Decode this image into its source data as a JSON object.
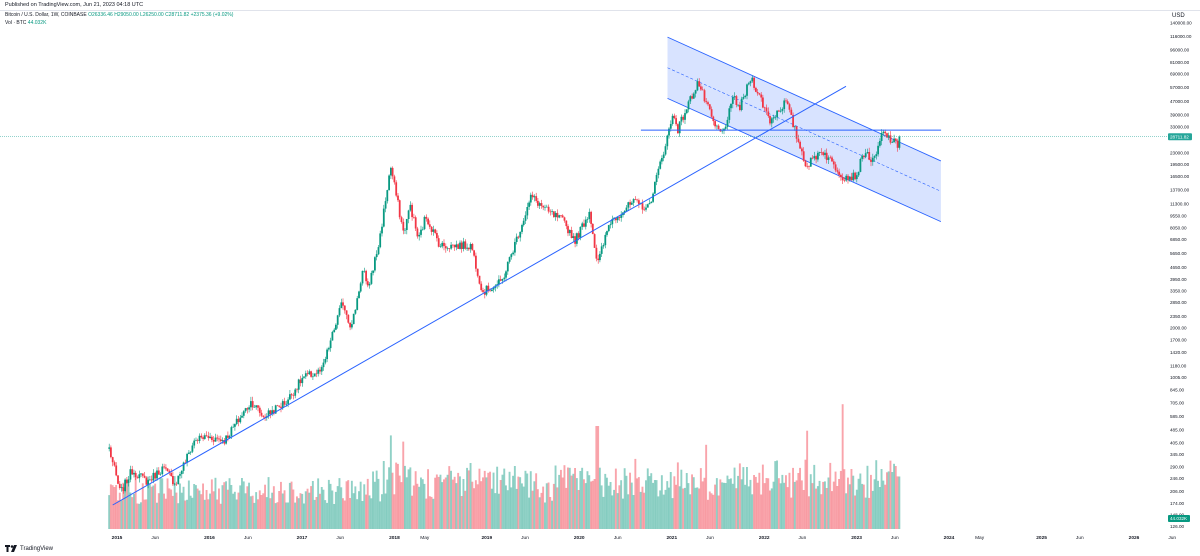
{
  "header": {
    "published": "Published on TradingView.com, Jun 21, 2023 04:18 UTC",
    "legend_symbol": "Bitcoin / U.S. Dollar, 1W, COINBASE",
    "legend_ohlc": "O26336.46  H29050.00  L26250.00  C28711.82  +2375.36 (+9.02%)",
    "legend_volume_label": "Vol · BTC",
    "legend_volume_value": "44.032K",
    "currency": "USD"
  },
  "footer": {
    "brand": "TradingView"
  },
  "colors": {
    "up": "#089981",
    "down": "#f23645",
    "line": "#2962ff",
    "channel_fill": "#2962ff",
    "last_price": "#26a69a"
  },
  "chart_data": {
    "type": "candlestick",
    "scale": "log",
    "y_ticks": [
      126.0,
      148.0,
      174.0,
      206.0,
      246.0,
      290.0,
      345.0,
      405.0,
      485.0,
      585.0,
      705.0,
      845.0,
      1005.0,
      1180.0,
      1420.0,
      1700.0,
      2000.0,
      2350.0,
      2850.0,
      3350.0,
      3950.0,
      4650.0,
      5650.0,
      6850.0,
      8050.0,
      9550.0,
      11300.0,
      13700.0,
      16500.0,
      19500.0,
      23000.0,
      33000.0,
      39000.0,
      47000.0,
      57000.0,
      69000.0,
      81000.0,
      96000.0,
      116000.0,
      140000.0
    ],
    "y_labels": [
      "126.00",
      "148.00",
      "174.00",
      "206.00",
      "246.00",
      "290.00",
      "345.00",
      "405.00",
      "485.00",
      "585.00",
      "705.00",
      "845.00",
      "1005.00",
      "1180.00",
      "1420.00",
      "1700.00",
      "2000.00",
      "2350.00",
      "2850.00",
      "3350.00",
      "3950.00",
      "4650.00",
      "5650.00",
      "6850.00",
      "8050.00",
      "9550.00",
      "11300.00",
      "13700.00",
      "16500.00",
      "19500.00",
      "23000.00",
      "33000.00",
      "39000.00",
      "47000.00",
      "57000.00",
      "69000.00",
      "81000.00",
      "96000.00",
      "116000.00",
      "140000.00"
    ],
    "x_ticks": [
      {
        "label": "2015",
        "date": "2015-01-01",
        "major": true
      },
      {
        "label": "Jun",
        "date": "2015-06-01",
        "major": false
      },
      {
        "label": "2016",
        "date": "2016-01-01",
        "major": true
      },
      {
        "label": "Jun",
        "date": "2016-06-01",
        "major": false
      },
      {
        "label": "2017",
        "date": "2017-01-01",
        "major": true
      },
      {
        "label": "Jun",
        "date": "2017-06-01",
        "major": false
      },
      {
        "label": "2018",
        "date": "2018-01-01",
        "major": true
      },
      {
        "label": "May",
        "date": "2018-05-01",
        "major": false
      },
      {
        "label": "2019",
        "date": "2019-01-01",
        "major": true
      },
      {
        "label": "Jun",
        "date": "2019-06-01",
        "major": false
      },
      {
        "label": "2020",
        "date": "2020-01-01",
        "major": true
      },
      {
        "label": "Jun",
        "date": "2020-06-01",
        "major": false
      },
      {
        "label": "2021",
        "date": "2021-01-01",
        "major": true
      },
      {
        "label": "Jun",
        "date": "2021-06-01",
        "major": false
      },
      {
        "label": "2022",
        "date": "2022-01-01",
        "major": true
      },
      {
        "label": "Jun",
        "date": "2022-06-01",
        "major": false
      },
      {
        "label": "2023",
        "date": "2023-01-01",
        "major": true
      },
      {
        "label": "Jun",
        "date": "2023-06-01",
        "major": false
      },
      {
        "label": "2024",
        "date": "2024-01-01",
        "major": true
      },
      {
        "label": "May",
        "date": "2024-05-01",
        "major": false
      },
      {
        "label": "2025",
        "date": "2025-01-01",
        "major": true
      },
      {
        "label": "Jun",
        "date": "2025-06-01",
        "major": false
      },
      {
        "label": "2026",
        "date": "2026-01-01",
        "major": true
      },
      {
        "label": "Jun",
        "date": "2026-06-01",
        "major": false
      }
    ],
    "price_anchors": [
      {
        "date": "2014-12-01",
        "close": 375
      },
      {
        "date": "2015-01-14",
        "close": 200
      },
      {
        "date": "2015-03-01",
        "close": 275
      },
      {
        "date": "2015-05-01",
        "close": 235
      },
      {
        "date": "2015-07-01",
        "close": 285
      },
      {
        "date": "2015-08-20",
        "close": 230
      },
      {
        "date": "2015-11-04",
        "close": 420
      },
      {
        "date": "2015-12-20",
        "close": 440
      },
      {
        "date": "2016-03-01",
        "close": 420
      },
      {
        "date": "2016-06-15",
        "close": 720
      },
      {
        "date": "2016-08-01",
        "close": 580
      },
      {
        "date": "2016-11-01",
        "close": 720
      },
      {
        "date": "2017-01-04",
        "close": 1000
      },
      {
        "date": "2017-03-20",
        "close": 1100
      },
      {
        "date": "2017-06-10",
        "close": 2900
      },
      {
        "date": "2017-07-15",
        "close": 2000
      },
      {
        "date": "2017-09-01",
        "close": 4700
      },
      {
        "date": "2017-09-15",
        "close": 3300
      },
      {
        "date": "2017-11-01",
        "close": 6500
      },
      {
        "date": "2017-12-17",
        "close": 19000
      },
      {
        "date": "2018-02-06",
        "close": 7500
      },
      {
        "date": "2018-03-05",
        "close": 11000
      },
      {
        "date": "2018-04-06",
        "close": 6800
      },
      {
        "date": "2018-05-05",
        "close": 9500
      },
      {
        "date": "2018-07-01",
        "close": 6300
      },
      {
        "date": "2018-11-01",
        "close": 6300
      },
      {
        "date": "2018-12-15",
        "close": 3300
      },
      {
        "date": "2019-03-01",
        "close": 3800
      },
      {
        "date": "2019-06-26",
        "close": 12500
      },
      {
        "date": "2019-09-01",
        "close": 10000
      },
      {
        "date": "2019-10-25",
        "close": 9000
      },
      {
        "date": "2019-12-17",
        "close": 6800
      },
      {
        "date": "2020-02-12",
        "close": 10200
      },
      {
        "date": "2020-03-13",
        "close": 4800
      },
      {
        "date": "2020-05-01",
        "close": 8800
      },
      {
        "date": "2020-08-01",
        "close": 11500
      },
      {
        "date": "2020-10-01",
        "close": 10600
      },
      {
        "date": "2021-01-08",
        "close": 40000
      },
      {
        "date": "2021-01-25",
        "close": 32000
      },
      {
        "date": "2021-04-14",
        "close": 62000
      },
      {
        "date": "2021-06-20",
        "close": 33000
      },
      {
        "date": "2021-07-20",
        "close": 30000
      },
      {
        "date": "2021-09-05",
        "close": 50000
      },
      {
        "date": "2021-09-25",
        "close": 42000
      },
      {
        "date": "2021-11-10",
        "close": 66000
      },
      {
        "date": "2022-01-24",
        "close": 36000
      },
      {
        "date": "2022-03-28",
        "close": 47000
      },
      {
        "date": "2022-05-12",
        "close": 28000
      },
      {
        "date": "2022-06-18",
        "close": 19000
      },
      {
        "date": "2022-08-15",
        "close": 24000
      },
      {
        "date": "2022-11-09",
        "close": 16500
      },
      {
        "date": "2022-12-30",
        "close": 16600
      },
      {
        "date": "2023-02-01",
        "close": 23500
      },
      {
        "date": "2023-03-10",
        "close": 20000
      },
      {
        "date": "2023-04-14",
        "close": 30500
      },
      {
        "date": "2023-06-15",
        "close": 25000
      },
      {
        "date": "2023-06-19",
        "close": 28711.82
      }
    ],
    "volume_ylim": [
      0,
      1000000
    ],
    "volume_peaks": [
      {
        "date": "2017-12-17",
        "volume": 300000
      },
      {
        "date": "2018-02-06",
        "volume": 280000
      },
      {
        "date": "2020-03-13",
        "volume": 330000
      },
      {
        "date": "2021-05-19",
        "volume": 270000
      },
      {
        "date": "2022-06-18",
        "volume": 315000
      },
      {
        "date": "2022-11-09",
        "volume": 400000
      }
    ],
    "drawings": [
      {
        "type": "trendline",
        "name": "long-term support",
        "from": {
          "date": "2014-12-15",
          "price": 170
        },
        "to": {
          "date": "2022-11-20",
          "price": 58000
        }
      },
      {
        "type": "horizontal",
        "name": "resistance",
        "from": {
          "date": "2020-09-01",
          "price": 31500
        },
        "to": {
          "date": "2023-12-01",
          "price": 31500
        }
      },
      {
        "type": "parallel_channel",
        "name": "descending channel",
        "upper": {
          "from": {
            "date": "2020-12-15",
            "price": 115000
          },
          "to": {
            "date": "2023-11-30",
            "price": 20500
          }
        },
        "lower": {
          "from": {
            "date": "2020-12-15",
            "price": 49000
          },
          "to": {
            "date": "2023-11-30",
            "price": 8800
          }
        }
      }
    ],
    "last_price": 28711.82,
    "last_price_label": "28711.82",
    "last_volume_label": "44.032K"
  }
}
